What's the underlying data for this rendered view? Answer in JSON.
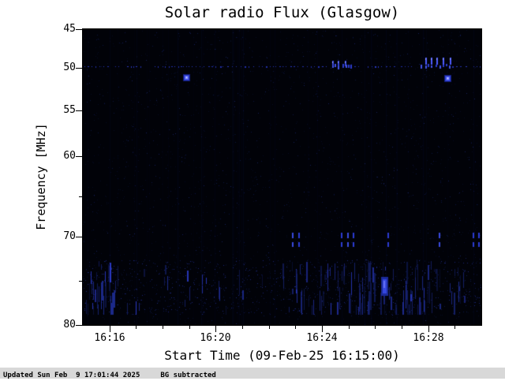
{
  "window": {
    "background": "#ffffff",
    "footer_bar_color": "#d8d8d8"
  },
  "chart_data": {
    "type": "heatmap",
    "title": "Solar radio Flux (Glasgow)",
    "xlabel": "Start Time (09-Feb-25 16:15:00)",
    "ylabel": "Frequency [MHz]",
    "x_start": "16:15:00",
    "x_end": "16:30:00",
    "x_minutes_span": 15,
    "x_ticks": [
      {
        "label": "16:16",
        "min": 1
      },
      {
        "label": "16:20",
        "min": 5
      },
      {
        "label": "16:24",
        "min": 9
      },
      {
        "label": "16:28",
        "min": 13
      }
    ],
    "x_minor_ticks_min": [
      2,
      3,
      4,
      6,
      7,
      8,
      10,
      11,
      12,
      14
    ],
    "y_ticks": [
      45,
      50,
      55,
      60,
      70,
      80
    ],
    "y_minor_ticks": [
      65,
      75
    ],
    "y_range": [
      45,
      80
    ],
    "freq_map": [
      [
        45,
        0
      ],
      [
        50,
        0.1307
      ],
      [
        55,
        0.2747
      ],
      [
        60,
        0.4293
      ],
      [
        70,
        0.7013
      ],
      [
        80,
        1
      ]
    ],
    "grid": false,
    "legend": "none",
    "plot_background": "#010208",
    "features": {
      "speckle_count": 2400,
      "dotted_line": {
        "freq": 49.8,
        "color": "#222fa8",
        "bright_color": "#4353e8",
        "bright_segments_min": [
          [
            9.3,
            10.2
          ],
          [
            12.6,
            13.9
          ]
        ]
      },
      "bright_points": [
        {
          "t_min": 3.9,
          "freq": 51.1
        },
        {
          "t_min": 13.72,
          "freq": 51.2
        }
      ],
      "dash_clusters": [
        {
          "t_min": [
            12.9,
            13.1,
            13.3,
            13.55,
            13.8
          ],
          "f0": 48.7,
          "f1": 49.6,
          "color": "#4d5cff"
        },
        {
          "t_min": [
            9.4,
            9.6,
            9.85
          ],
          "f0": 49.1,
          "f1": 49.8,
          "color": "#3847d8"
        }
      ],
      "streaks_70mhz": {
        "t_min": [
          7.87,
          8.11,
          9.71,
          9.95,
          10.16,
          11.47,
          13.4,
          14.67,
          14.88
        ],
        "f_pairs": [
          [
            69.5,
            70.2
          ],
          [
            70.6,
            71.2
          ]
        ],
        "color": "#2c3cd4",
        "bright_color": "#3a4ae0"
      },
      "noise_band": {
        "f0": 72.6,
        "f1": 78.8,
        "t0": 0.05,
        "t1": 14.95,
        "line_count": 170,
        "dense_t": [
          8,
          14
        ],
        "edge_t": [
          0.1,
          1.3
        ],
        "colors": [
          "#0e1850",
          "#16226e",
          "#1c2a8c",
          "#2c3ccc"
        ]
      },
      "bright_blob": {
        "t_min": 11.35,
        "f0": 74.8,
        "f1": 76.4,
        "color": "#3547e0"
      }
    }
  },
  "footer": {
    "updated": "Updated Sun Feb  9 17:01:44 2025",
    "bg_note": "BG subtracted"
  }
}
